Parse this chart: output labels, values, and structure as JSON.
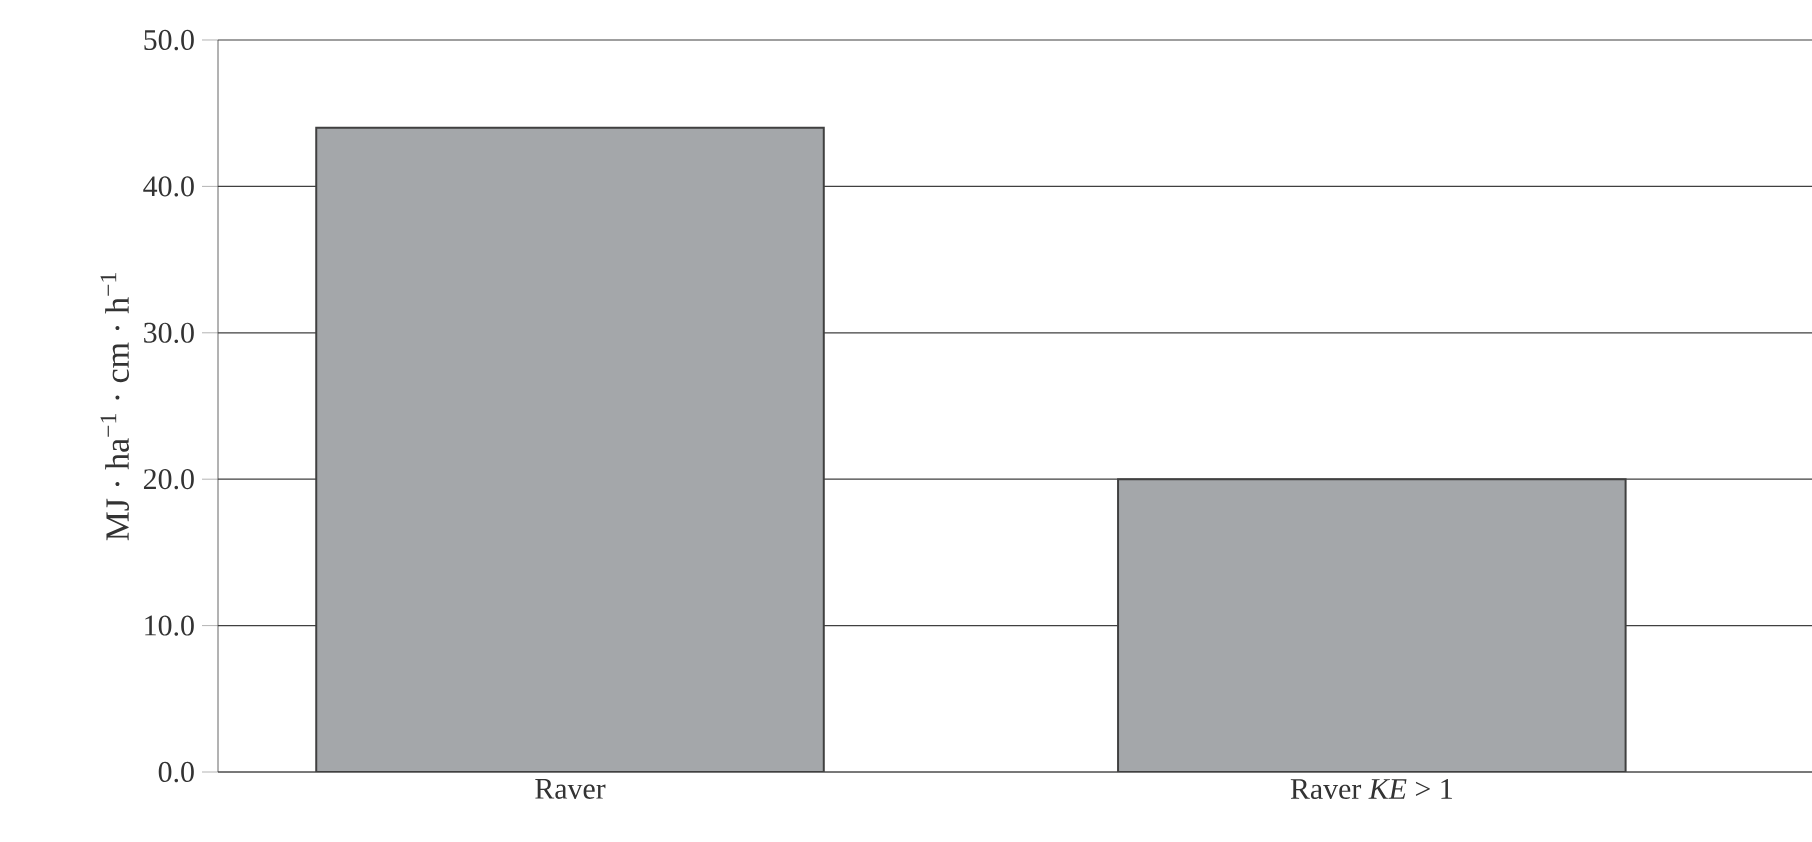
{
  "chart_data": {
    "type": "bar",
    "ylabel": "MJ · ha$^{−1}$ · cm · h$^{−1}$",
    "categories": [
      "Raver",
      "Raver *KE* > 1"
    ],
    "values": [
      44.0,
      20.0
    ],
    "color": "#a4a7aa",
    "ylim": [
      0,
      50
    ],
    "yticks": [
      {
        "value": 0,
        "label": "0.0"
      },
      {
        "value": 10,
        "label": "10.0"
      },
      {
        "value": 20,
        "label": "20.0"
      },
      {
        "value": 30,
        "label": "30.0"
      },
      {
        "value": 40,
        "label": "40.0"
      },
      {
        "value": 50,
        "label": "50.0"
      }
    ],
    "grid": "y"
  }
}
